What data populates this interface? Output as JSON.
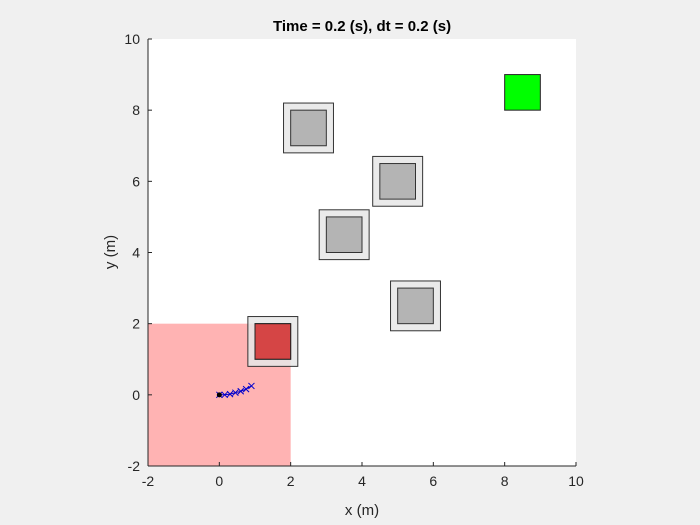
{
  "chart_data": {
    "type": "scatter",
    "title": "Time = 0.2 (s), dt = 0.2 (s)",
    "xlabel": "x (m)",
    "ylabel": "y (m)",
    "xlim": [
      -2,
      10
    ],
    "ylim": [
      -2,
      10
    ],
    "xticks": [
      "-2",
      "0",
      "2",
      "4",
      "6",
      "8",
      "10"
    ],
    "yticks": [
      "-2",
      "0",
      "2",
      "4",
      "6",
      "8",
      "10"
    ],
    "grid": false,
    "legend": "none",
    "regions": [
      {
        "name_hint": "start-region",
        "x0": -2,
        "y0": -2,
        "x1": 2,
        "y1": 2,
        "color": "#ffb3b3"
      }
    ],
    "obstacles": [
      {
        "cx": 2.5,
        "cy": 7.5,
        "inner": 1.0,
        "outer": 1.4
      },
      {
        "cx": 5.0,
        "cy": 6.0,
        "inner": 1.0,
        "outer": 1.4
      },
      {
        "cx": 3.5,
        "cy": 4.5,
        "inner": 1.0,
        "outer": 1.4
      },
      {
        "cx": 5.5,
        "cy": 2.5,
        "inner": 1.0,
        "outer": 1.4
      },
      {
        "cx": 1.5,
        "cy": 1.5,
        "inner": 1.0,
        "outer": 1.4
      }
    ],
    "agent": {
      "x0": 1.0,
      "y0": 1.0,
      "x1": 2.0,
      "y1": 2.0,
      "color": "#e02020",
      "opacity": 0.75
    },
    "goal": {
      "x0": 8.0,
      "y0": 8.0,
      "x1": 9.0,
      "y1": 9.0,
      "color": "#00ff00"
    },
    "trajectory": {
      "color": "#0000cc",
      "x": [
        0.0,
        0.15,
        0.3,
        0.45,
        0.6,
        0.75,
        0.9
      ],
      "y": [
        0.0,
        0.0,
        0.02,
        0.06,
        0.1,
        0.16,
        0.25
      ]
    },
    "start_point": {
      "x": 0.0,
      "y": 0.0,
      "color": "#000000"
    }
  }
}
